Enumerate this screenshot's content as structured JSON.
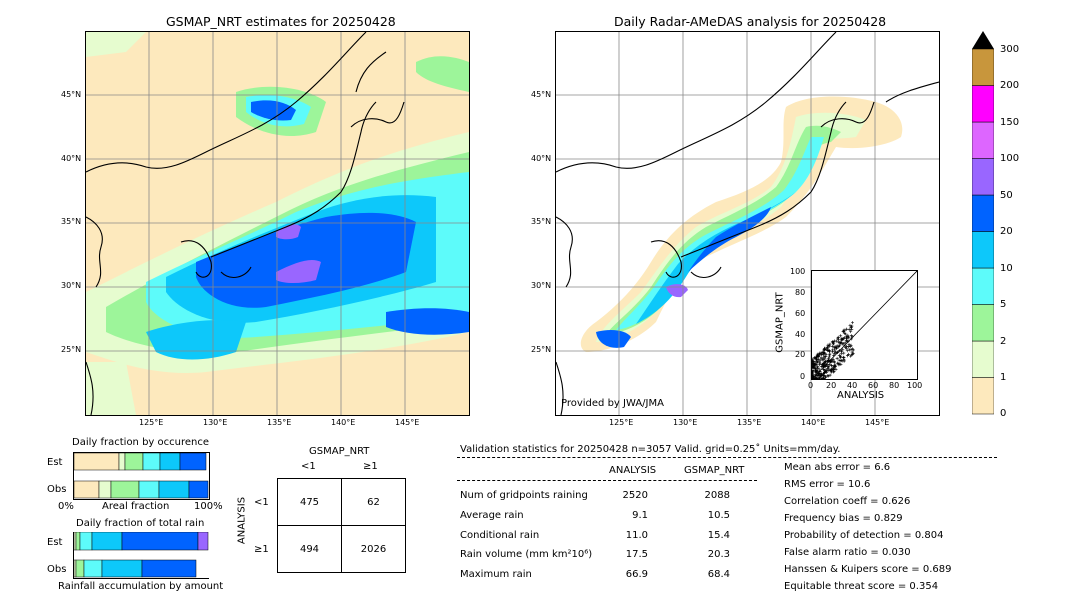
{
  "left_map": {
    "title": "GSMAP_NRT estimates for 20250428",
    "lat_labels": [
      "45°N",
      "40°N",
      "35°N",
      "30°N",
      "25°N"
    ],
    "lon_labels": [
      "125°E",
      "130°E",
      "135°E",
      "140°E",
      "145°E"
    ]
  },
  "right_map": {
    "title": "Daily Radar-AMeDAS analysis for 20250428",
    "lat_labels": [
      "45°N",
      "40°N",
      "35°N",
      "30°N",
      "25°N"
    ],
    "lon_labels": [
      "125°E",
      "130°E",
      "135°E",
      "140°E",
      "145°E"
    ],
    "credit": "Provided by JWA/JMA"
  },
  "colorbar": {
    "labels": [
      "0",
      "1",
      "2",
      "5",
      "10",
      "20",
      "50",
      "100",
      "150",
      "200",
      "300"
    ],
    "colors": [
      "#fde9bd",
      "#e6fccf",
      "#9df59a",
      "#5dfbfa",
      "#0dc8fa",
      "#0063ff",
      "#9966ff",
      "#dd66ff",
      "#ff00ff",
      "#c8963c"
    ]
  },
  "scatter": {
    "xlabel": "ANALYSIS",
    "ylabel": "GSMAP_NRT",
    "ticks": [
      "0",
      "20",
      "40",
      "60",
      "80",
      "100"
    ]
  },
  "occurrence": {
    "title": "Daily fraction by occurence",
    "row_labels": [
      "Est",
      "Obs"
    ],
    "axis_left": "0%",
    "axis_mid": "Areal fraction",
    "axis_right": "100%"
  },
  "total_rain": {
    "title": "Daily fraction of total rain",
    "row_labels": [
      "Est",
      "Obs"
    ],
    "axis_label": "Rainfall accumulation by amount"
  },
  "contingency": {
    "title": "GSMAP_NRT",
    "col_labels": [
      "<1",
      "≥1"
    ],
    "row_axis": "ANALYSIS",
    "row_labels": [
      "<1",
      "≥1"
    ],
    "cells": [
      [
        "475",
        "62"
      ],
      [
        "494",
        "2026"
      ]
    ]
  },
  "validation": {
    "header": "Validation statistics for 20250428  n=3057 Valid. grid=0.25˚ Units=mm/day.",
    "col_analysis": "ANALYSIS",
    "col_gsmap": "GSMAP_NRT",
    "rows": [
      {
        "label": "Num of gridpoints raining",
        "analysis": "2520",
        "gsmap": "2088"
      },
      {
        "label": "Average rain",
        "analysis": "9.1",
        "gsmap": "10.5"
      },
      {
        "label": "Conditional rain",
        "analysis": "11.0",
        "gsmap": "15.4"
      },
      {
        "label": "Rain volume (mm km²10⁶)",
        "analysis": "17.5",
        "gsmap": "20.3"
      },
      {
        "label": "Maximum rain",
        "analysis": "66.9",
        "gsmap": "68.4"
      }
    ],
    "scores": [
      "Mean abs error =    6.6",
      "RMS error =   10.6",
      "Correlation coeff =  0.626",
      "Frequency bias =  0.829",
      "Probability of detection =  0.804",
      "False alarm ratio =  0.030",
      "Hanssen & Kuipers score =  0.689",
      "Equitable threat score =  0.354"
    ]
  }
}
